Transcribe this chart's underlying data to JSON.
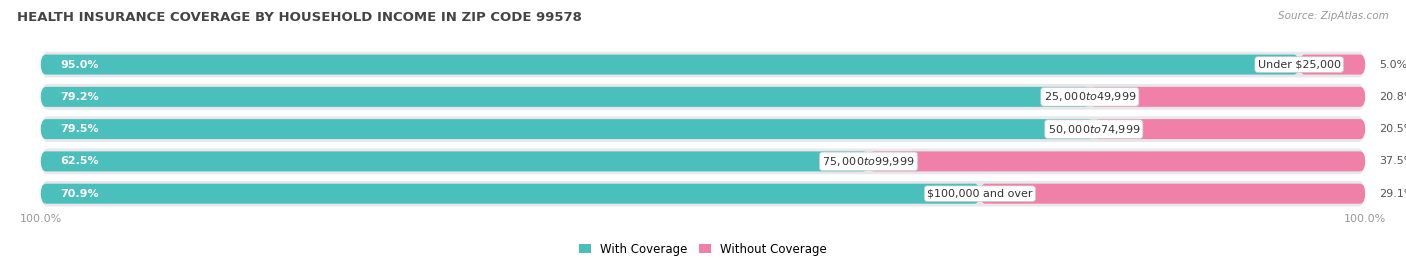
{
  "title": "HEALTH INSURANCE COVERAGE BY HOUSEHOLD INCOME IN ZIP CODE 99578",
  "source": "Source: ZipAtlas.com",
  "categories": [
    "Under $25,000",
    "$25,000 to $49,999",
    "$50,000 to $74,999",
    "$75,000 to $99,999",
    "$100,000 and over"
  ],
  "with_coverage": [
    95.0,
    79.2,
    79.5,
    62.5,
    70.9
  ],
  "without_coverage": [
    5.0,
    20.8,
    20.5,
    37.5,
    29.1
  ],
  "color_coverage": "#4BBFBB",
  "color_no_coverage": "#F080A8",
  "row_bg_color": "#E8E8EC",
  "title_fontsize": 9.5,
  "label_fontsize": 8.0,
  "tick_fontsize": 8.0,
  "legend_fontsize": 8.5,
  "source_fontsize": 7.5
}
